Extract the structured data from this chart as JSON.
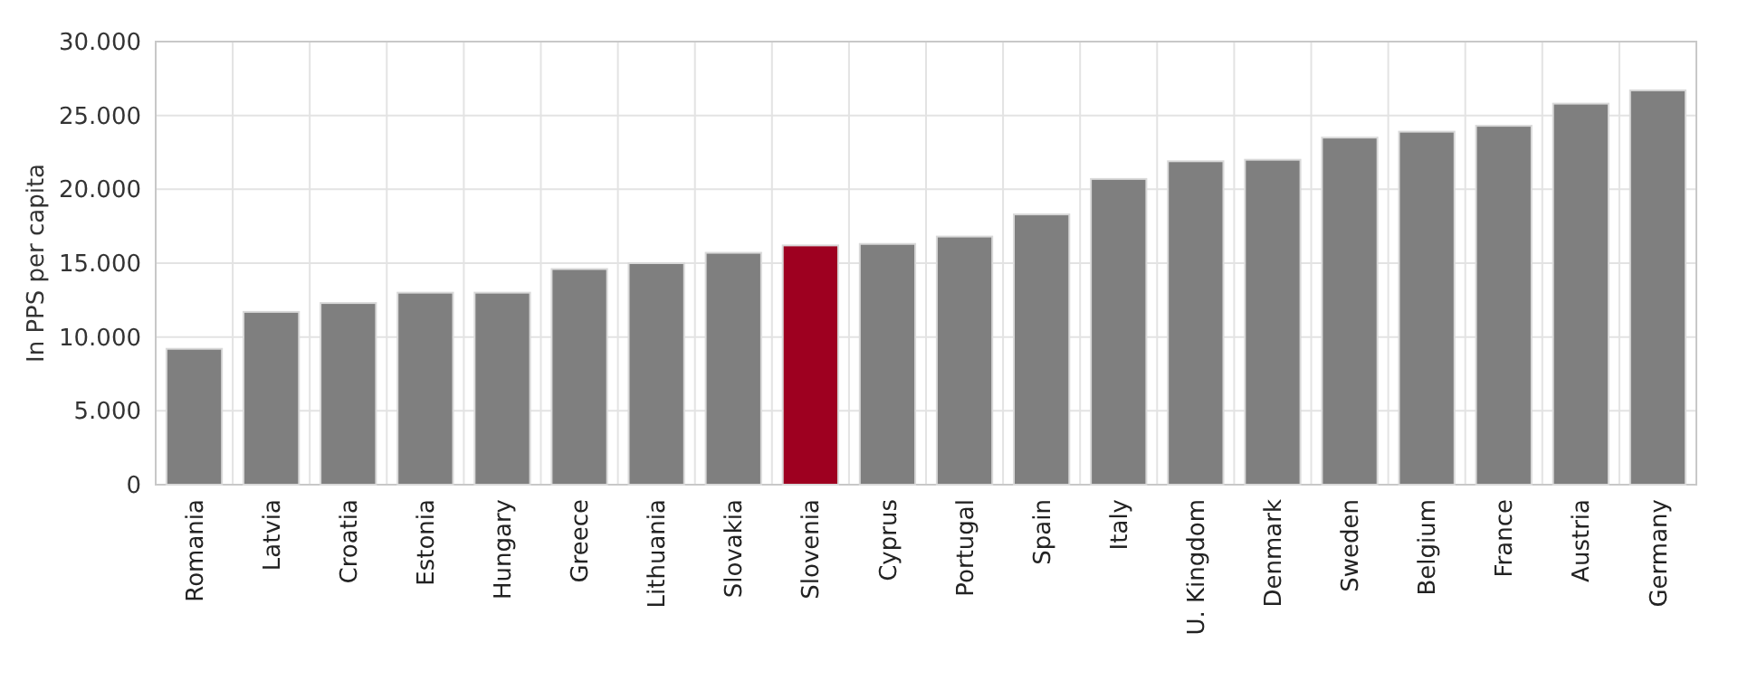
{
  "chart_data": {
    "type": "bar",
    "ylabel": "In PPS per capita",
    "categories": [
      "Romania",
      "Latvia",
      "Croatia",
      "Estonia",
      "Hungary",
      "Greece",
      "Lithuania",
      "Slovakia",
      "Slovenia",
      "Cyprus",
      "Portugal",
      "Spain",
      "Italy",
      "U. Kingdom",
      "Denmark",
      "Sweden",
      "Belgium",
      "France",
      "Austria",
      "Germany"
    ],
    "values": [
      9200,
      11700,
      12300,
      13000,
      13000,
      14600,
      15000,
      15700,
      16200,
      16300,
      16800,
      18300,
      20700,
      21900,
      22000,
      23500,
      23900,
      24300,
      25800,
      26700
    ],
    "colors": [
      "#7f7f7f",
      "#7f7f7f",
      "#7f7f7f",
      "#7f7f7f",
      "#7f7f7f",
      "#7f7f7f",
      "#7f7f7f",
      "#7f7f7f",
      "#9e0020",
      "#7f7f7f",
      "#7f7f7f",
      "#7f7f7f",
      "#7f7f7f",
      "#7f7f7f",
      "#7f7f7f",
      "#7f7f7f",
      "#7f7f7f",
      "#7f7f7f",
      "#7f7f7f",
      "#7f7f7f"
    ],
    "ylim": [
      0,
      30000
    ],
    "yticks": [
      0,
      {
        "value": 5000,
        "label": "5.000"
      },
      {
        "value": 10000,
        "label": "10.000"
      },
      {
        "value": 15000,
        "label": "15.000"
      },
      {
        "value": 20000,
        "label": "20.000"
      },
      {
        "value": 25000,
        "label": "25.000"
      },
      {
        "value": 30000,
        "label": "30.000"
      }
    ],
    "grid": true
  }
}
